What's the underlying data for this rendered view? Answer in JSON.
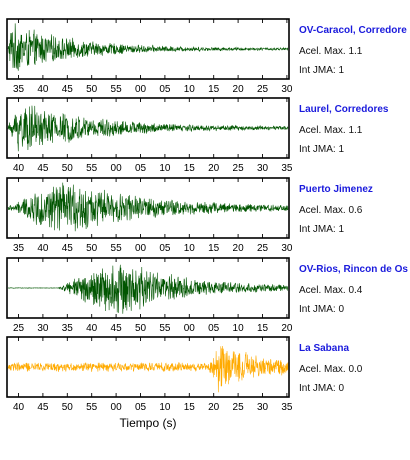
{
  "figure": {
    "xlabel": "Tiempo (s)"
  },
  "chart_data": [
    {
      "type": "line",
      "station": "OV-Caracol, Corredore",
      "acel_max": "Acel. Max. 1.1",
      "int_jma": "Int JMA: 1",
      "color": "#005500",
      "x_tick_labels": [
        "35",
        "40",
        "45",
        "50",
        "55",
        "00",
        "05",
        "10",
        "15",
        "20",
        "25",
        "30"
      ],
      "envelope": {
        "onset": 0.0,
        "rise": 0.015,
        "peak": 1.0,
        "decay": 0.22,
        "pre_noise": 0.03,
        "tail_noise": 0.04
      }
    },
    {
      "type": "line",
      "station": "Laurel, Corredores",
      "acel_max": "Acel. Max. 1.1",
      "int_jma": "Int JMA: 1",
      "color": "#005500",
      "x_tick_labels": [
        "40",
        "45",
        "50",
        "55",
        "00",
        "05",
        "10",
        "15",
        "20",
        "25",
        "30",
        "35"
      ],
      "envelope": {
        "onset": 0.0,
        "rise": 0.05,
        "peak": 1.0,
        "decay": 0.26,
        "pre_noise": 0.05,
        "tail_noise": 0.05
      }
    },
    {
      "type": "line",
      "station": "Puerto Jimenez",
      "acel_max": "Acel. Max. 0.6",
      "int_jma": "Int JMA: 1",
      "color": "#005500",
      "x_tick_labels": [
        "35",
        "40",
        "45",
        "50",
        "55",
        "00",
        "05",
        "10",
        "15",
        "20",
        "25",
        "30"
      ],
      "envelope": {
        "onset": 0.02,
        "rise": 0.2,
        "peak": 1.0,
        "decay": 0.3,
        "pre_noise": 0.12,
        "tail_noise": 0.06
      }
    },
    {
      "type": "line",
      "station": "OV-Rios, Rincon de Os",
      "acel_max": "Acel. Max. 0.4",
      "int_jma": "Int JMA: 0",
      "color": "#005500",
      "x_tick_labels": [
        "25",
        "30",
        "35",
        "40",
        "45",
        "50",
        "55",
        "00",
        "05",
        "10",
        "15",
        "20"
      ],
      "envelope": {
        "onset": 0.18,
        "rise": 0.25,
        "peak": 1.0,
        "decay": 0.22,
        "pre_noise": 0.01,
        "tail_noise": 0.05
      }
    },
    {
      "type": "line",
      "station": "La Sabana",
      "acel_max": "Acel. Max. 0.0",
      "int_jma": "Int JMA: 0",
      "color": "#ffaa00",
      "x_tick_labels": [
        "40",
        "45",
        "50",
        "55",
        "00",
        "05",
        "10",
        "15",
        "20",
        "25",
        "30",
        "35"
      ],
      "envelope": {
        "onset": 0.72,
        "rise": 0.04,
        "peak": 1.0,
        "decay": 0.12,
        "pre_noise": 0.18,
        "tail_noise": 0.2
      }
    }
  ]
}
